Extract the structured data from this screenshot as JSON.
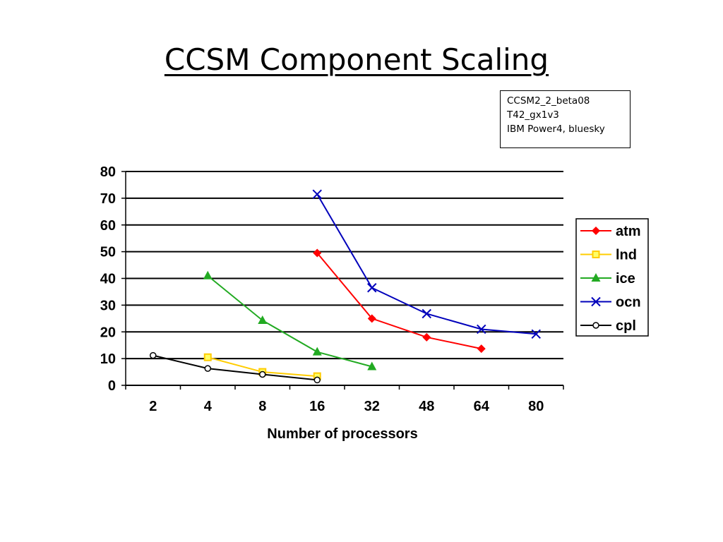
{
  "slide": {
    "title": "CCSM Component Scaling",
    "info_lines": [
      "CCSM2_2_beta08",
      "T42_gx1v3",
      "IBM Power4, bluesky"
    ]
  },
  "chart_data": {
    "type": "line",
    "title": "",
    "xlabel": "Number of processors",
    "ylabel": "",
    "categories": [
      "2",
      "4",
      "8",
      "16",
      "32",
      "48",
      "64",
      "80"
    ],
    "ylim": [
      0,
      80
    ],
    "yticks": [
      0,
      10,
      20,
      30,
      40,
      50,
      60,
      70,
      80
    ],
    "grid": "horizontal",
    "legend_position": "right",
    "series": [
      {
        "name": "atm",
        "color": "#ff0000",
        "marker": "diamond",
        "values": [
          null,
          null,
          null,
          49.5,
          25,
          18,
          13.7,
          null
        ]
      },
      {
        "name": "lnd",
        "color": "#ffcc00",
        "marker": "square",
        "values": [
          null,
          10.5,
          5,
          3.4,
          null,
          null,
          null,
          null
        ]
      },
      {
        "name": "ice",
        "color": "#22aa22",
        "marker": "triangle",
        "values": [
          null,
          41,
          24.3,
          12.5,
          7,
          null,
          null,
          null
        ]
      },
      {
        "name": "ocn",
        "color": "#0000bb",
        "marker": "x",
        "values": [
          null,
          null,
          null,
          71.5,
          36.5,
          26.8,
          21,
          19.2
        ]
      },
      {
        "name": "cpl",
        "color": "#000000",
        "marker": "circle",
        "values": [
          11.2,
          6.3,
          4.1,
          2,
          null,
          null,
          null,
          null
        ]
      }
    ]
  }
}
